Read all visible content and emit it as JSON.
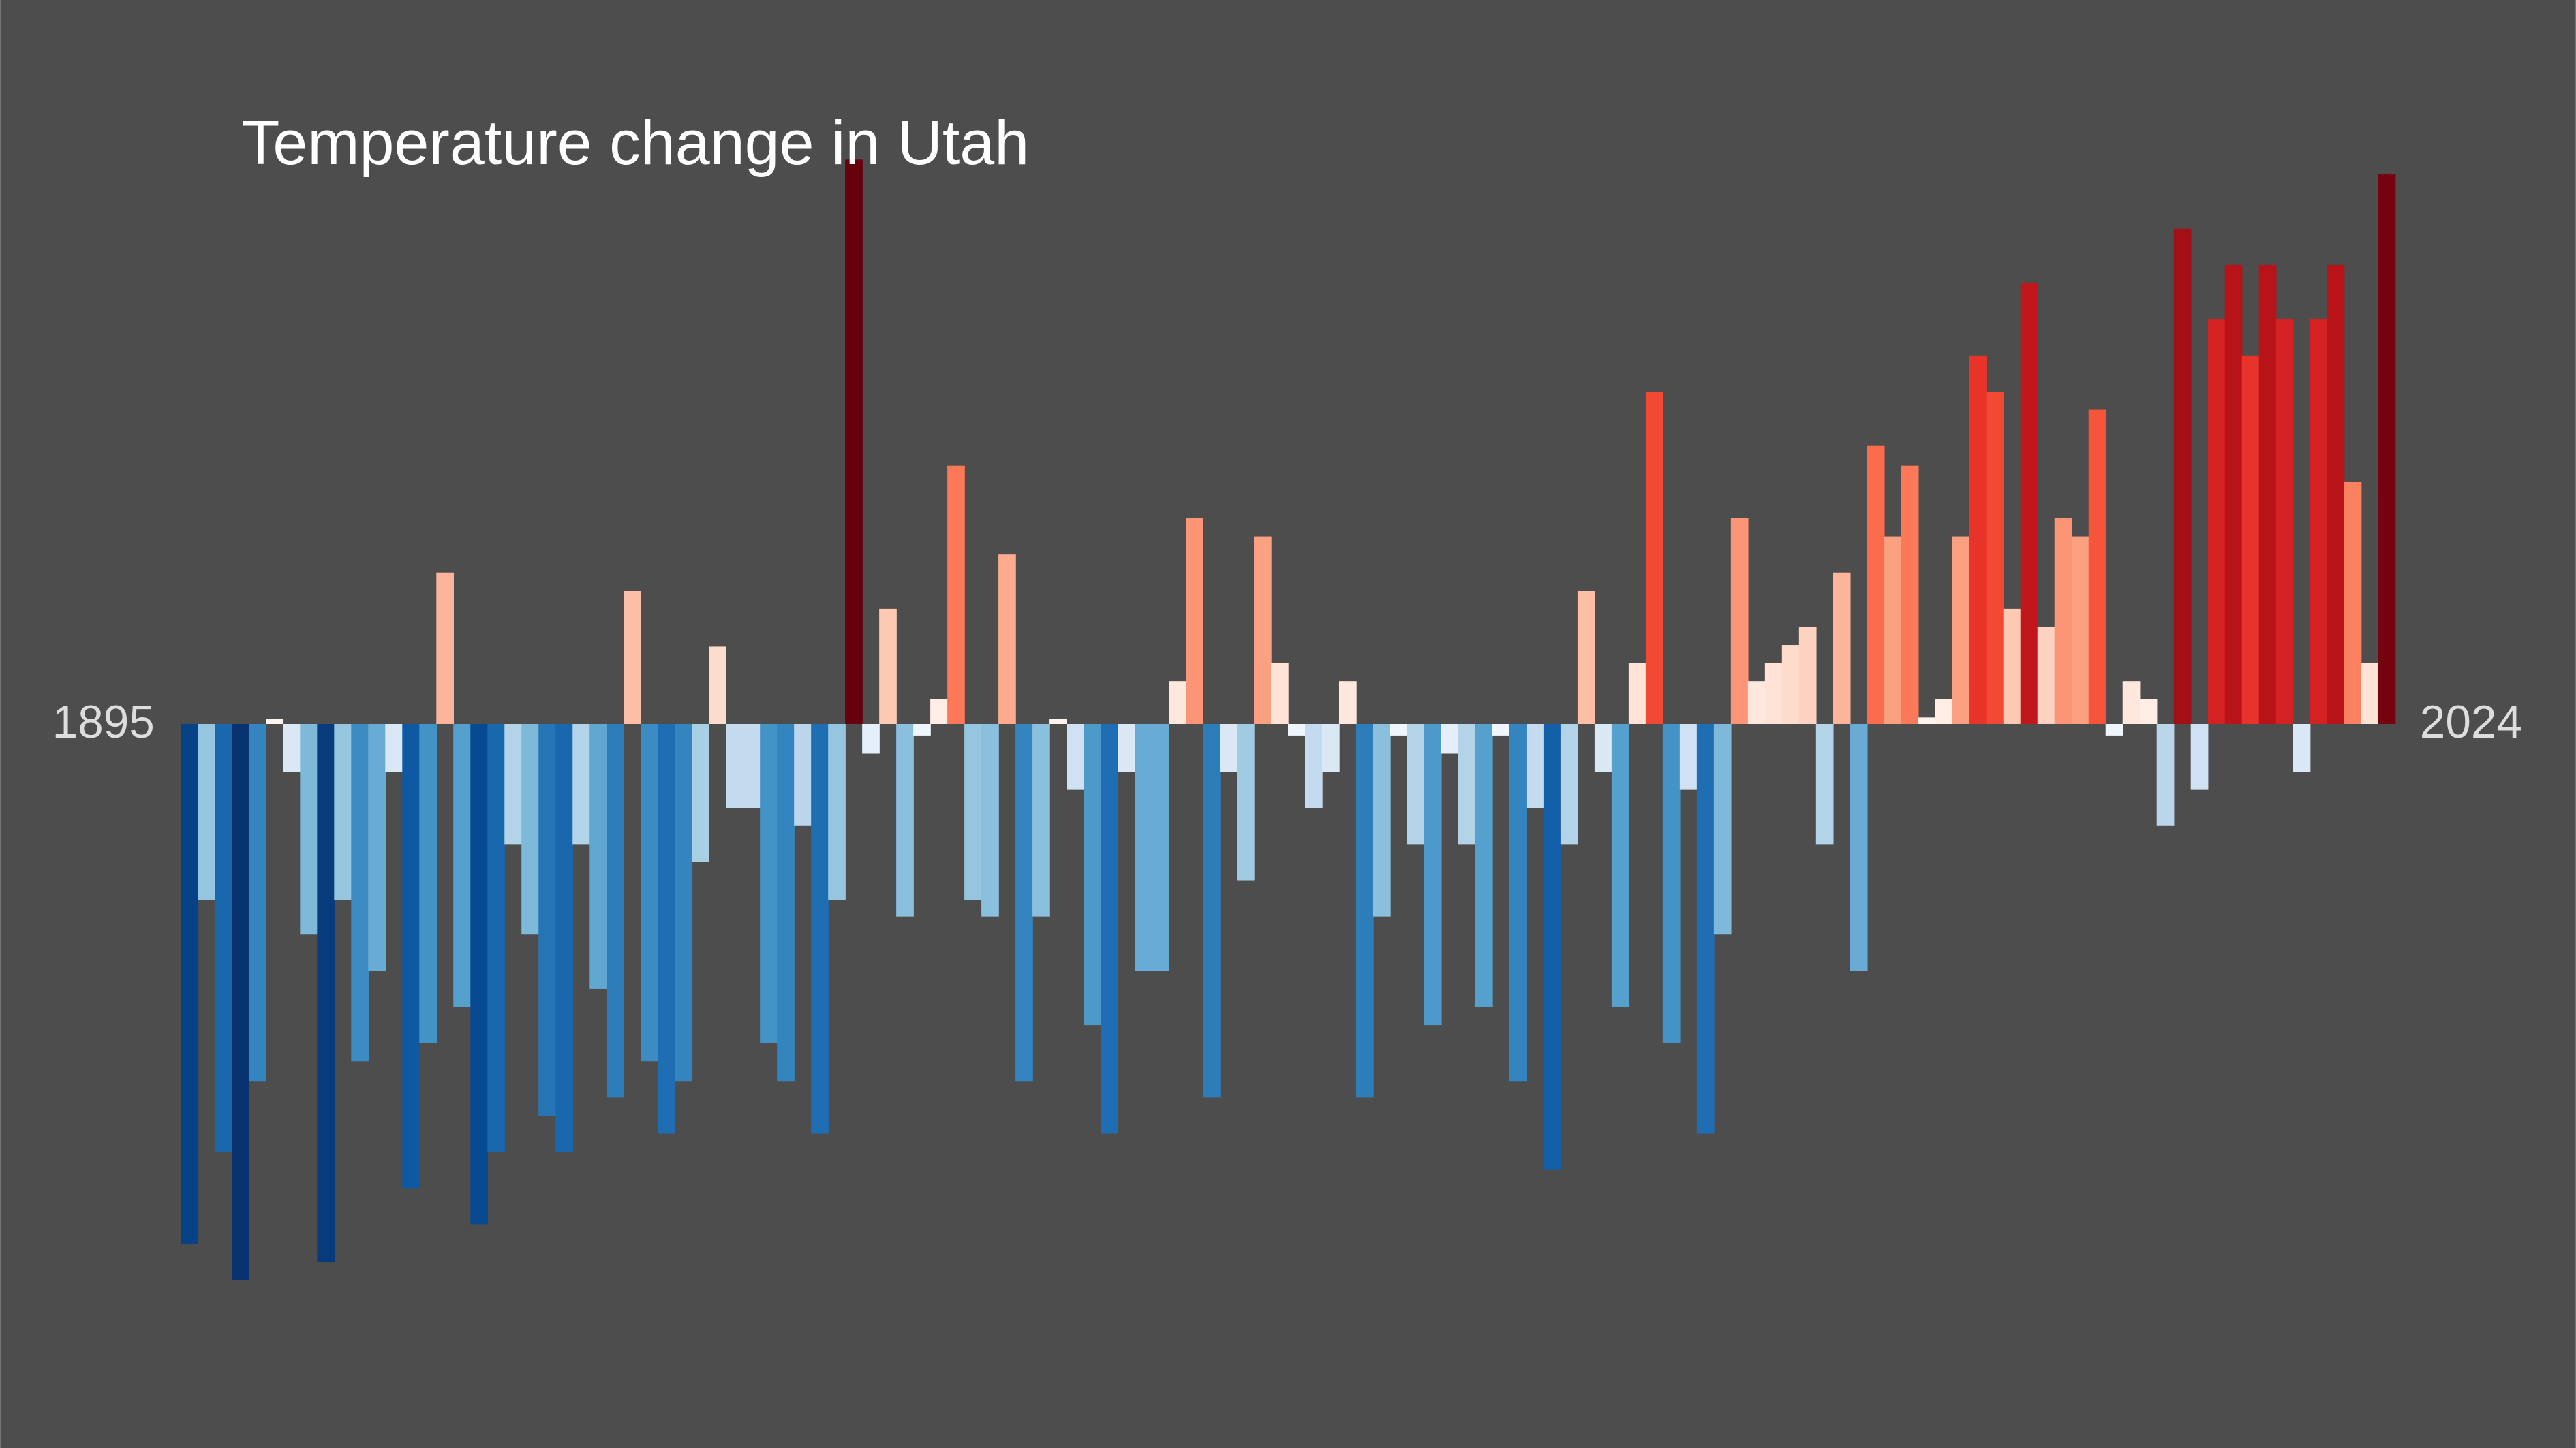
{
  "chart_data": {
    "type": "bar",
    "title": "Temperature change in Utah",
    "categories": [
      "1895",
      null,
      null,
      null,
      null,
      null,
      null,
      null,
      null,
      null,
      null,
      null,
      null,
      null,
      null,
      null,
      null,
      null,
      null,
      null,
      null,
      null,
      null,
      null,
      null,
      null,
      null,
      null,
      null,
      null,
      null,
      null,
      null,
      null,
      null,
      null,
      null,
      null,
      null,
      null,
      null,
      null,
      null,
      null,
      null,
      null,
      null,
      null,
      null,
      null,
      null,
      null,
      null,
      null,
      null,
      null,
      null,
      null,
      null,
      null,
      null,
      null,
      null,
      null,
      null,
      null,
      null,
      null,
      null,
      null,
      null,
      null,
      null,
      null,
      null,
      null,
      null,
      null,
      null,
      null,
      null,
      null,
      null,
      null,
      null,
      null,
      null,
      null,
      null,
      null,
      null,
      null,
      null,
      null,
      null,
      null,
      null,
      null,
      null,
      null,
      null,
      null,
      null,
      null,
      null,
      null,
      null,
      null,
      null,
      null,
      null,
      null,
      null,
      null,
      null,
      null,
      null,
      null,
      null,
      null,
      null,
      null,
      null,
      null,
      null,
      null,
      null,
      null,
      null,
      "2024"
    ],
    "values": [
      -3.16,
      -1.07,
      -2.6,
      -3.38,
      -2.17,
      0.03,
      -0.29,
      -1.28,
      -3.27,
      -1.07,
      -2.05,
      -1.5,
      -0.29,
      -2.82,
      -1.94,
      0.92,
      -1.72,
      -3.04,
      -2.6,
      -0.73,
      -1.28,
      -2.38,
      -2.6,
      -0.73,
      -1.61,
      -2.27,
      0.81,
      -2.05,
      -2.49,
      -2.17,
      -0.84,
      0.47,
      -0.51,
      -0.51,
      -1.94,
      -2.17,
      -0.62,
      -2.49,
      -1.07,
      3.43,
      -0.18,
      0.7,
      -1.17,
      -0.07,
      0.15,
      1.57,
      -1.07,
      -1.17,
      1.03,
      -2.17,
      -1.17,
      0.03,
      -0.4,
      -1.83,
      -2.49,
      -0.29,
      -1.5,
      -1.5,
      0.26,
      1.25,
      -2.27,
      -0.29,
      -0.95,
      1.14,
      0.37,
      -0.07,
      -0.51,
      -0.29,
      0.26,
      -2.27,
      -1.17,
      -0.07,
      -0.73,
      -1.83,
      -0.18,
      -0.73,
      -1.72,
      -0.07,
      -2.17,
      -0.51,
      -2.71,
      -0.73,
      0.81,
      -0.29,
      -1.72,
      0.37,
      2.02,
      -1.94,
      -0.4,
      -2.49,
      -1.28,
      1.25,
      0.26,
      0.37,
      0.48,
      0.59,
      -0.73,
      0.92,
      -1.5,
      1.69,
      1.14,
      1.57,
      0.04,
      0.15,
      1.14,
      2.24,
      2.02,
      0.7,
      2.68,
      0.59,
      1.25,
      1.14,
      1.91,
      -0.07,
      0.26,
      0.15,
      -0.62,
      3.01,
      -0.4,
      2.46,
      2.79,
      2.24,
      2.79,
      2.46,
      -0.29,
      2.46,
      2.79,
      1.47,
      0.37,
      3.34
    ],
    "ylim": [
      -4.4,
      4.4
    ],
    "background": "#4d4d4d"
  }
}
